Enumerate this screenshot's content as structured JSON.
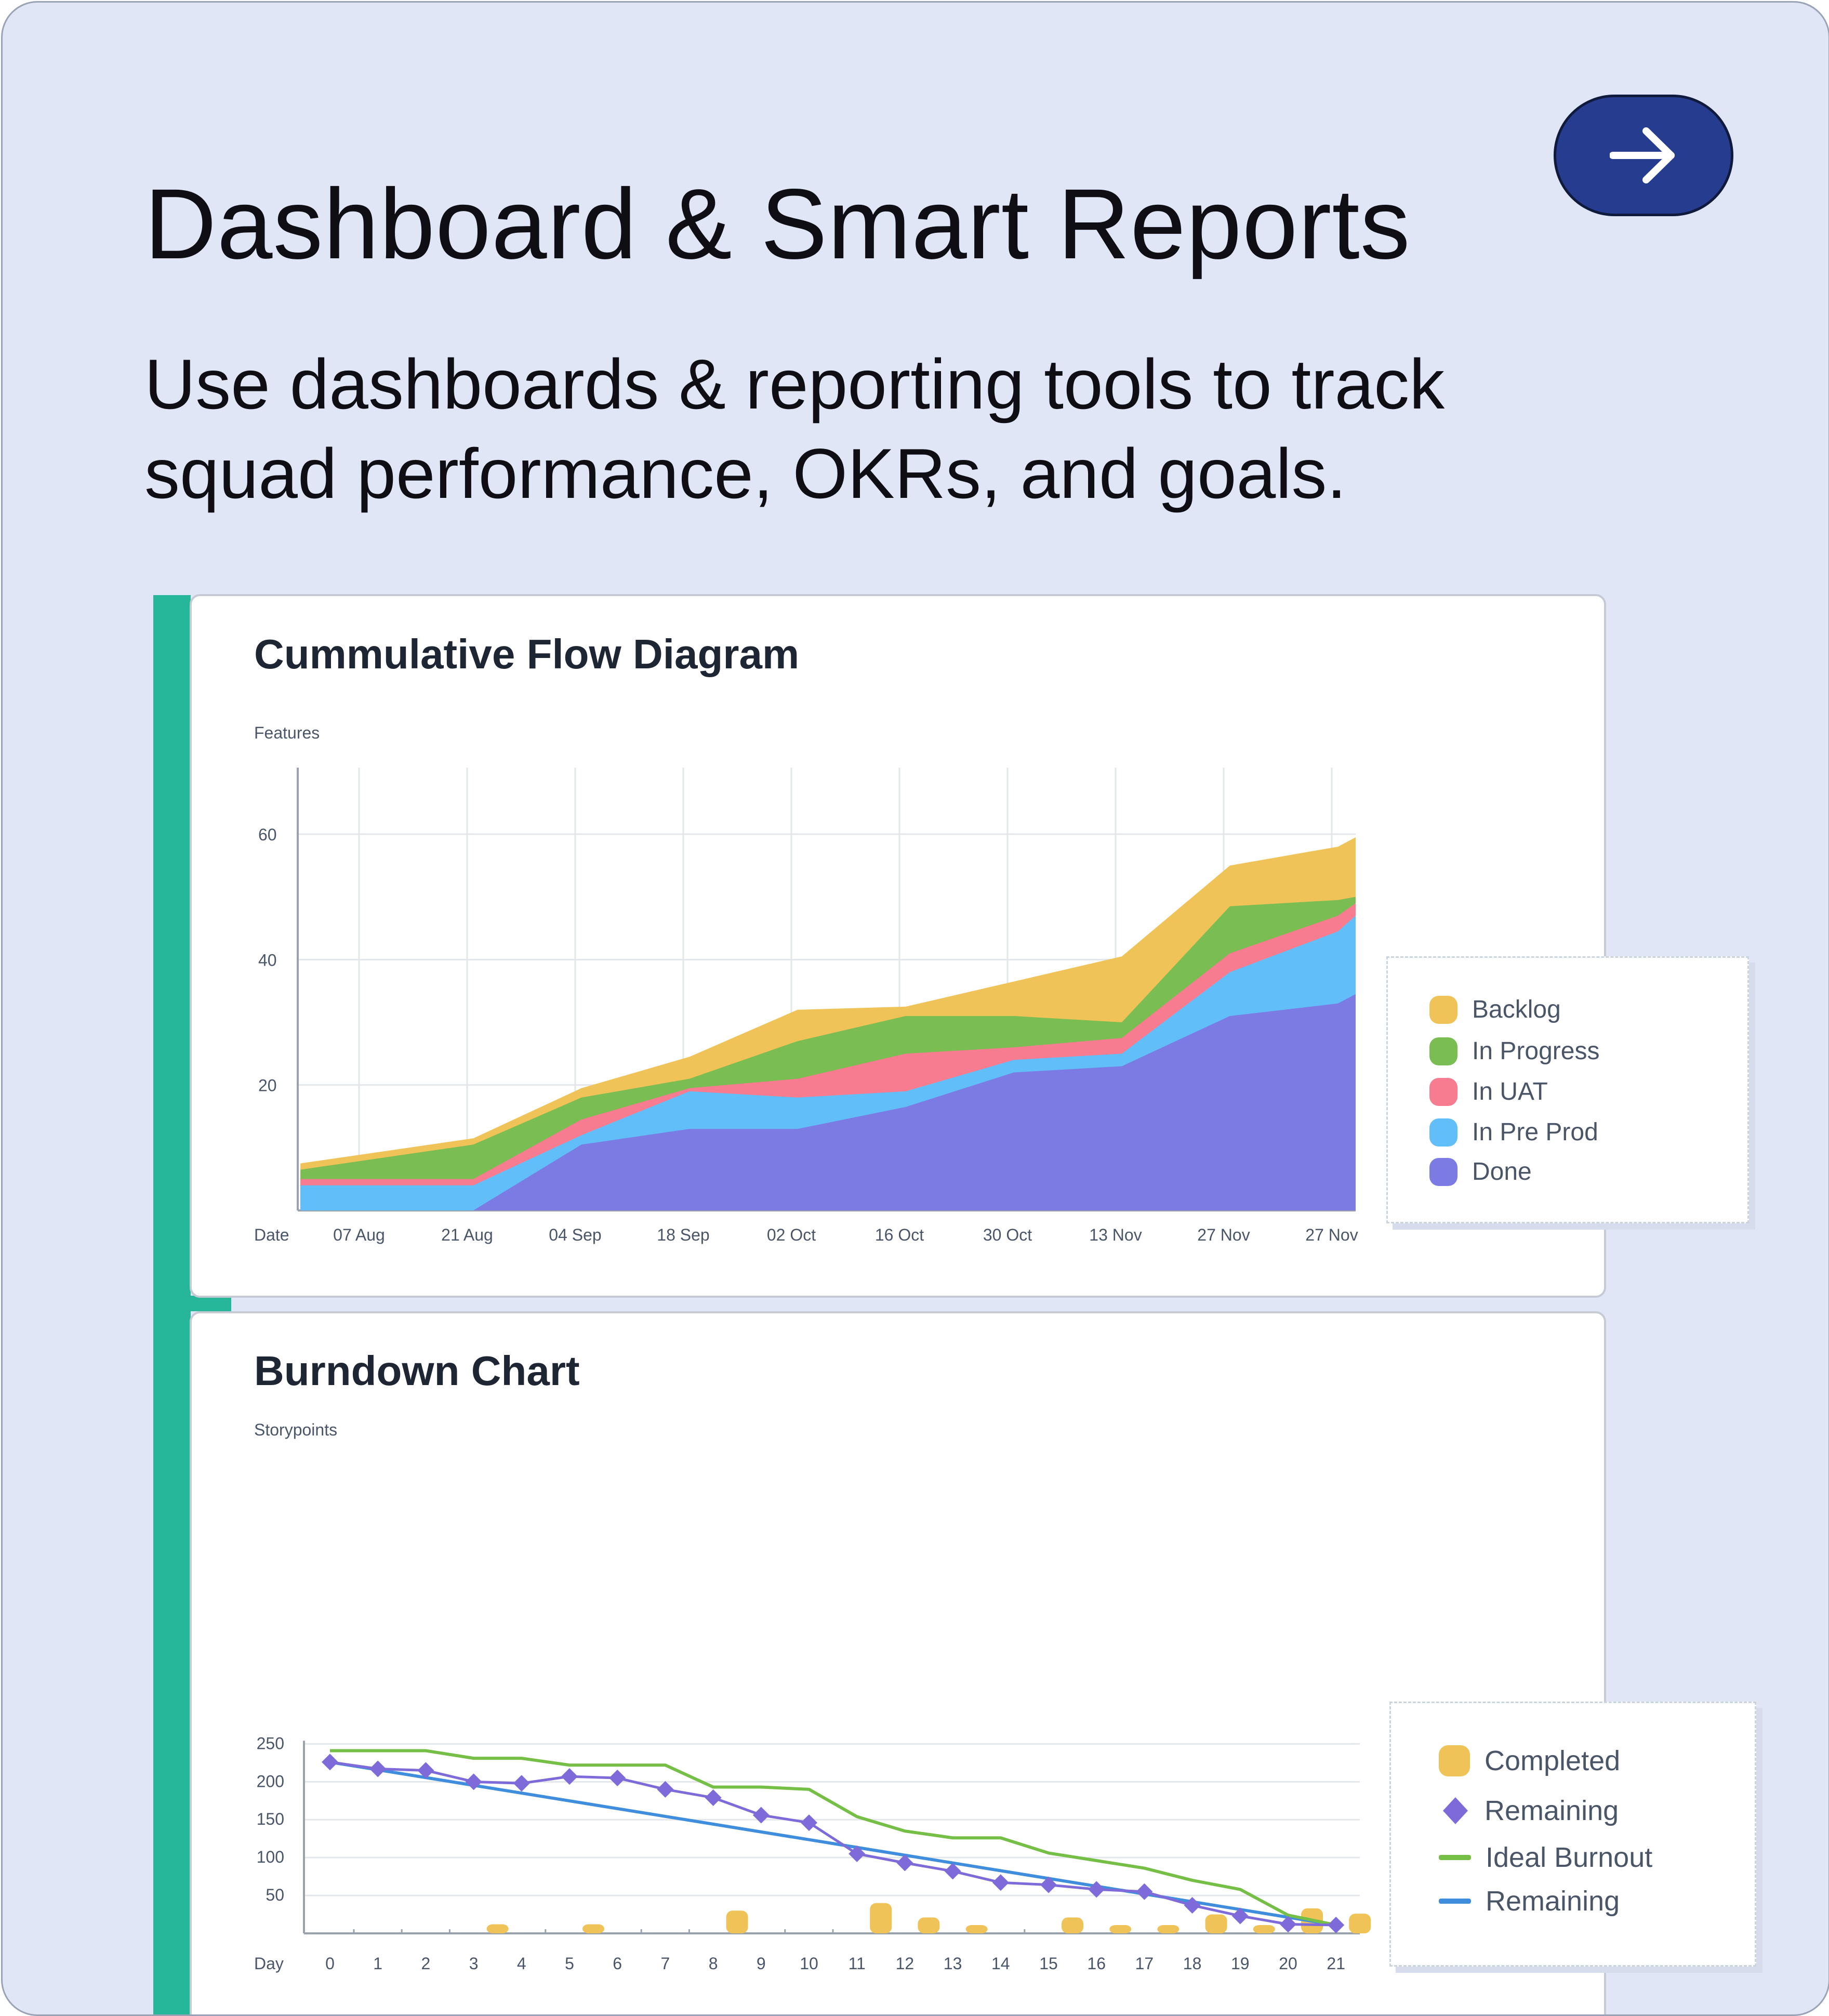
{
  "page": {
    "title": "Dashboard & Smart Reports",
    "subtitle": "Use dashboards & reporting tools to track squad performance, OKRs, and goals.",
    "arrow_icon": "arrow-right-icon"
  },
  "colors": {
    "backlog": "#f0c358",
    "in_progress": "#7abd52",
    "in_uat": "#f87c8f",
    "in_pre_prod": "#62bef9",
    "done": "#7b7be3",
    "completed": "#f0c358",
    "remaining_markers": "#7e6ad8",
    "ideal_burnout": "#76bf46",
    "remaining_line": "#3f8ddd"
  },
  "chart_data": [
    {
      "type": "area",
      "title": "Cummulative Flow Diagram",
      "ylabel": "Features",
      "xlabel": "Date",
      "ylim": [
        0,
        70
      ],
      "yticks": [
        20,
        40,
        60
      ],
      "categories": [
        "07 Aug",
        "21 Aug",
        "04 Sep",
        "18 Sep",
        "02 Oct",
        "16 Oct",
        "30 Oct",
        "13 Nov",
        "27 Nov",
        "27 Nov"
      ],
      "x": [
        -0.6,
        1,
        2,
        3,
        4,
        5,
        6,
        7,
        8,
        9,
        9.25
      ],
      "series": [
        {
          "name": "Done",
          "key": "done",
          "values": [
            0,
            0,
            10.5,
            13,
            13,
            16.5,
            22,
            23,
            31,
            33,
            34.5
          ]
        },
        {
          "name": "In Pre Prod",
          "key": "in_pre_prod",
          "values": [
            4,
            4,
            12,
            19,
            18,
            19,
            24,
            25,
            38,
            44.5,
            47
          ]
        },
        {
          "name": "In UAT",
          "key": "in_uat",
          "values": [
            5,
            5,
            14.5,
            19.5,
            21,
            25,
            26,
            27.5,
            41,
            47,
            49
          ]
        },
        {
          "name": "In Progress",
          "key": "in_progress",
          "values": [
            6.5,
            10.5,
            18,
            21,
            27,
            31,
            31,
            30,
            48.5,
            49.5,
            50
          ]
        },
        {
          "name": "Backlog",
          "key": "backlog",
          "values": [
            7.5,
            11.5,
            19.5,
            24.5,
            32,
            32.5,
            36.5,
            40.5,
            55,
            58,
            59.5
          ]
        }
      ],
      "legend": [
        "Backlog",
        "In Progress",
        "In UAT",
        "In Pre Prod",
        "Done"
      ]
    },
    {
      "type": "bar",
      "title": "Burndown Chart",
      "ylabel": "Storypoints",
      "xlabel": "Day",
      "ylim": [
        0,
        250
      ],
      "yticks": [
        50,
        100,
        150,
        200,
        250
      ],
      "x": [
        0,
        1,
        2,
        3,
        4,
        5,
        6,
        7,
        8,
        9,
        10,
        11,
        12,
        13,
        14,
        15,
        16,
        17,
        18,
        19,
        20,
        21
      ],
      "series": [
        {
          "name": "Completed",
          "key": "completed",
          "type": "bar",
          "values": [
            0,
            0,
            0,
            12,
            0,
            12,
            0,
            0,
            30,
            0,
            0,
            40,
            21,
            11,
            0,
            21,
            11,
            11,
            25,
            11,
            33,
            26
          ]
        },
        {
          "name": "Remaining",
          "key": "remaining_markers",
          "type": "line-markers",
          "values": [
            226,
            217,
            215,
            200,
            198,
            207,
            205,
            190,
            179,
            156,
            146,
            105,
            93,
            82,
            67,
            64,
            58,
            55,
            37,
            23,
            12,
            11
          ]
        },
        {
          "name": "Ideal Burnout",
          "key": "ideal_burnout",
          "type": "line",
          "values": [
            241,
            241,
            241,
            231,
            231,
            222,
            222,
            222,
            193,
            193,
            190,
            154,
            135,
            126,
            126,
            106,
            96,
            86,
            70,
            58,
            24,
            11
          ]
        },
        {
          "name": "Remaining",
          "key": "remaining_line",
          "type": "line",
          "values": [
            226,
            216,
            205,
            194,
            184,
            173,
            162,
            151,
            141,
            130,
            119,
            108,
            98,
            87,
            76,
            65,
            54,
            44,
            33,
            22,
            11,
            11
          ]
        }
      ],
      "legend": [
        "Completed",
        "Remaining",
        "Ideal Burnout",
        "Remaining"
      ]
    }
  ]
}
